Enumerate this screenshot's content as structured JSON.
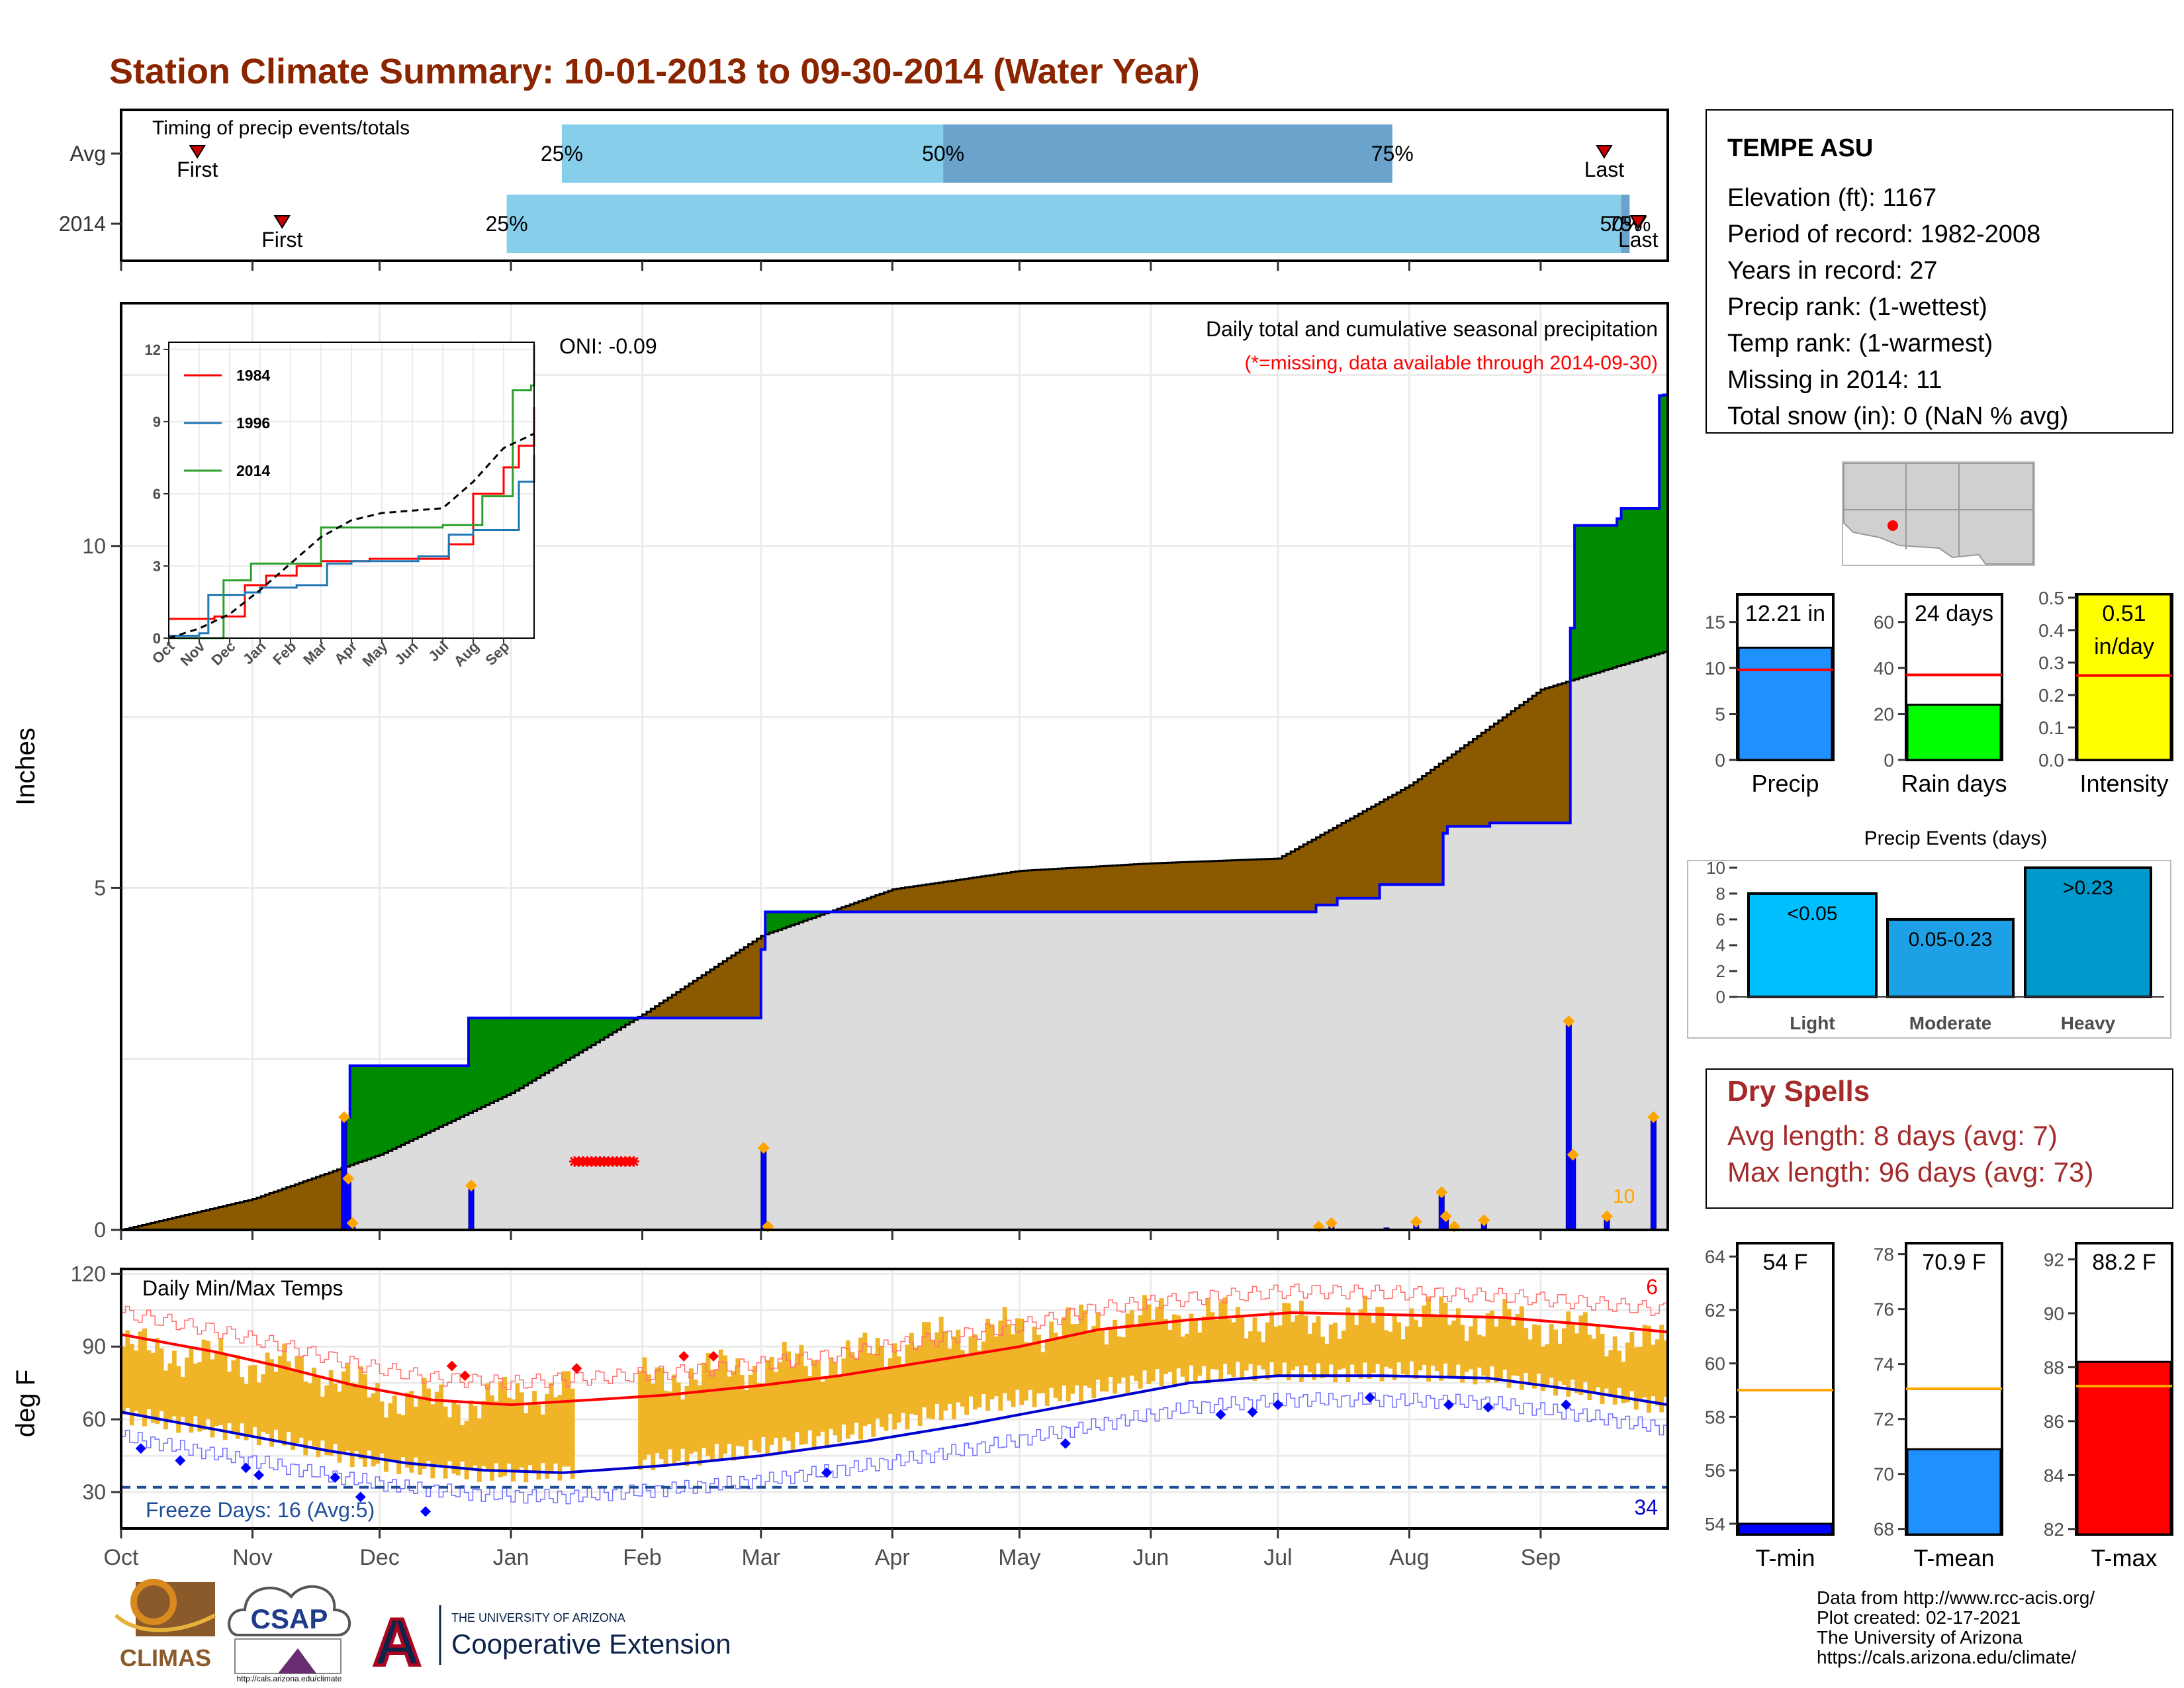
{
  "title": "Station Climate Summary: 10-01-2013 to 09-30-2014 (Water Year)",
  "colors": {
    "title": "#8b2500",
    "precip_bar_fill": "#0000ff",
    "deficit": "#8b5a00",
    "surplus": "#008b00",
    "normal_area": "#dcdcdc",
    "cum_line": "#0000ff",
    "orange_marker": "#ffa500",
    "temp_max_line": "#ff0000",
    "temp_min_line": "#0000cd",
    "temp_range_bar": "#f0b428",
    "intensity_fill": "#ffff00",
    "rain_days_fill": "#00ff00",
    "precip_fill": "#1e90ff",
    "dry_spell_text": "#a52a2a"
  },
  "timing_panel": {
    "label": "Timing of precip events/totals",
    "rows": [
      {
        "name": "Avg",
        "first_label": "First",
        "last_label": "Last",
        "p25": "25%",
        "p50": "50%",
        "p75": "75%"
      },
      {
        "name": "2014",
        "first_label": "First",
        "last_label": "Last",
        "p25": "25%",
        "p50": "50%",
        "p75": "75%"
      }
    ],
    "chart_data": {
      "type": "bar",
      "x_unit": "day of water year",
      "rows": [
        {
          "name": "Avg",
          "first": 18,
          "p25": 104,
          "p50": 194,
          "p75": 300,
          "last": 350
        },
        {
          "name": "2014",
          "first": 38,
          "p25": 91,
          "p50": 354,
          "p75": 356,
          "last": 358
        }
      ]
    }
  },
  "main_panel": {
    "ylabel": "Inches",
    "y_ticks": [
      "0",
      "5",
      "10"
    ],
    "oni_label": "ONI: -0.09",
    "subtitle_1": "Daily total and cumulative seasonal precipitation",
    "subtitle_2": "(*=missing, data available through 2014-09-30)",
    "orange_count_label": "10",
    "chart_data": {
      "type": "area",
      "x_unit": "date",
      "y_range": [
        0,
        12.2
      ],
      "normal_cumulative": [
        [
          "2013-10-01",
          0.0
        ],
        [
          "2013-11-01",
          0.45
        ],
        [
          "2013-12-01",
          1.1
        ],
        [
          "2014-01-01",
          2.0
        ],
        [
          "2014-02-01",
          3.15
        ],
        [
          "2014-03-01",
          4.3
        ],
        [
          "2014-04-01",
          4.98
        ],
        [
          "2014-05-01",
          5.25
        ],
        [
          "2014-06-01",
          5.36
        ],
        [
          "2014-07-01",
          5.43
        ],
        [
          "2014-08-01",
          6.5
        ],
        [
          "2014-09-01",
          7.9
        ],
        [
          "2014-09-30",
          8.45
        ]
      ],
      "observed_cumulative": [
        [
          "2013-10-01",
          0.0
        ],
        [
          "2013-11-22",
          0.0
        ],
        [
          "2013-11-23",
          1.65
        ],
        [
          "2013-11-24",
          2.4
        ],
        [
          "2013-12-21",
          2.4
        ],
        [
          "2013-12-22",
          3.1
        ],
        [
          "2014-02-28",
          3.1
        ],
        [
          "2014-03-01",
          4.1
        ],
        [
          "2014-03-02",
          4.65
        ],
        [
          "2014-07-01",
          4.65
        ],
        [
          "2014-07-10",
          4.75
        ],
        [
          "2014-07-15",
          4.85
        ],
        [
          "2014-07-25",
          5.05
        ],
        [
          "2014-08-08",
          5.05
        ],
        [
          "2014-08-09",
          5.8
        ],
        [
          "2014-08-10",
          5.9
        ],
        [
          "2014-08-20",
          5.95
        ],
        [
          "2014-09-07",
          5.95
        ],
        [
          "2014-09-08",
          8.8
        ],
        [
          "2014-09-09",
          10.3
        ],
        [
          "2014-09-19",
          10.4
        ],
        [
          "2014-09-20",
          10.55
        ],
        [
          "2014-09-28",
          10.55
        ],
        [
          "2014-09-29",
          12.2
        ],
        [
          "2014-09-30",
          12.21
        ]
      ],
      "daily_precip": [
        [
          "2013-11-22",
          1.65
        ],
        [
          "2013-11-23",
          0.75
        ],
        [
          "2013-11-24",
          0.1
        ],
        [
          "2013-12-22",
          0.65
        ],
        [
          "2014-03-01",
          1.2
        ],
        [
          "2014-03-02",
          0.05
        ],
        [
          "2014-07-10",
          0.05
        ],
        [
          "2014-07-13",
          0.1
        ],
        [
          "2014-07-26",
          0.03
        ],
        [
          "2014-08-02",
          0.12
        ],
        [
          "2014-08-08",
          0.55
        ],
        [
          "2014-08-09",
          0.2
        ],
        [
          "2014-08-11",
          0.05
        ],
        [
          "2014-08-18",
          0.14
        ],
        [
          "2014-09-07",
          3.05
        ],
        [
          "2014-09-08",
          1.1
        ],
        [
          "2014-09-16",
          0.2
        ],
        [
          "2014-09-27",
          1.65
        ]
      ],
      "missing_range": [
        "2014-01-16",
        "2014-01-30"
      ]
    }
  },
  "inset": {
    "x_ticks": [
      "Oct",
      "Nov",
      "Dec",
      "Jan",
      "Feb",
      "Mar",
      "Apr",
      "May",
      "Jun",
      "Jul",
      "Aug",
      "Sep"
    ],
    "y_ticks": [
      "0",
      "3",
      "6",
      "9",
      "12"
    ],
    "legend": [
      {
        "name": "1984",
        "color": "#ff0000"
      },
      {
        "name": "1996",
        "color": "#1f77b4"
      },
      {
        "name": "2014",
        "color": "#2ca02c"
      }
    ],
    "chart_data": {
      "type": "line",
      "x_unit": "month of water year (0 = Oct 1)",
      "series": [
        {
          "name": "1984",
          "points": [
            [
              0,
              0.8
            ],
            [
              1.5,
              0.9
            ],
            [
              2.5,
              2.2
            ],
            [
              3.2,
              2.6
            ],
            [
              4.2,
              3.0
            ],
            [
              5.0,
              3.2
            ],
            [
              6.6,
              3.3
            ],
            [
              8.0,
              3.3
            ],
            [
              9.2,
              3.9
            ],
            [
              10.0,
              6.0
            ],
            [
              11.0,
              7.1
            ],
            [
              11.5,
              8.0
            ],
            [
              12,
              9.6
            ]
          ]
        },
        {
          "name": "1996",
          "points": [
            [
              0,
              0.1
            ],
            [
              1.0,
              0.2
            ],
            [
              1.3,
              1.8
            ],
            [
              2.5,
              1.9
            ],
            [
              3.0,
              2.1
            ],
            [
              4.2,
              2.2
            ],
            [
              5.2,
              3.1
            ],
            [
              6.0,
              3.2
            ],
            [
              8.2,
              3.4
            ],
            [
              9.2,
              4.3
            ],
            [
              10.0,
              4.5
            ],
            [
              11.5,
              6.5
            ],
            [
              12,
              7.6
            ]
          ]
        },
        {
          "name": "2014",
          "points": [
            [
              0,
              0.0
            ],
            [
              1.7,
              0.0
            ],
            [
              1.8,
              2.4
            ],
            [
              2.7,
              3.1
            ],
            [
              4.9,
              3.1
            ],
            [
              5.0,
              4.6
            ],
            [
              9.0,
              4.7
            ],
            [
              10.3,
              5.9
            ],
            [
              11.2,
              5.9
            ],
            [
              11.3,
              10.3
            ],
            [
              11.9,
              10.5
            ],
            [
              12,
              12.2
            ]
          ]
        },
        {
          "name": "normal",
          "points": [
            [
              0,
              0.0
            ],
            [
              1,
              0.4
            ],
            [
              2,
              1.0
            ],
            [
              3,
              2.0
            ],
            [
              4,
              3.1
            ],
            [
              5,
              4.2
            ],
            [
              6,
              4.9
            ],
            [
              7,
              5.2
            ],
            [
              8,
              5.3
            ],
            [
              9,
              5.4
            ],
            [
              10,
              6.5
            ],
            [
              11,
              7.9
            ],
            [
              12,
              8.5
            ]
          ]
        }
      ]
    }
  },
  "temp_panel": {
    "title": "Daily Min/Max Temps",
    "ylabel": "deg F",
    "y_ticks": [
      "30",
      "60",
      "90",
      "120"
    ],
    "freeze_label": "Freeze Days: 16 (Avg:5)",
    "count_high": "6",
    "count_low": "34",
    "x_ticks": [
      "Oct",
      "Nov",
      "Dec",
      "Jan",
      "Feb",
      "Mar",
      "Apr",
      "May",
      "Jun",
      "Jul",
      "Aug",
      "Sep"
    ],
    "chart_data": {
      "type": "line",
      "x_unit": "month of water year (0 = Oct 1)",
      "y_range": [
        15,
        122
      ],
      "freeze_line_y": 32,
      "avg_max": [
        [
          0,
          95
        ],
        [
          0.7,
          88
        ],
        [
          1.2,
          82
        ],
        [
          1.8,
          74
        ],
        [
          2.4,
          68
        ],
        [
          3.0,
          66
        ],
        [
          3.6,
          68
        ],
        [
          4.2,
          70
        ],
        [
          5.0,
          74
        ],
        [
          5.6,
          78
        ],
        [
          6.3,
          84
        ],
        [
          7.0,
          90
        ],
        [
          7.6,
          97
        ],
        [
          8.3,
          101
        ],
        [
          9.1,
          104
        ],
        [
          10.0,
          103
        ],
        [
          10.7,
          102
        ],
        [
          11.4,
          99
        ],
        [
          12,
          96
        ]
      ],
      "avg_min": [
        [
          0,
          63
        ],
        [
          0.8,
          55
        ],
        [
          1.6,
          47
        ],
        [
          2.2,
          42
        ],
        [
          2.8,
          39
        ],
        [
          3.4,
          38
        ],
        [
          4.2,
          41
        ],
        [
          5.0,
          45
        ],
        [
          5.8,
          51
        ],
        [
          6.6,
          58
        ],
        [
          7.4,
          66
        ],
        [
          8.3,
          75
        ],
        [
          9.0,
          78
        ],
        [
          9.8,
          78
        ],
        [
          10.6,
          77
        ],
        [
          11.3,
          72
        ],
        [
          12,
          66
        ]
      ],
      "obs_max_smooth": [
        [
          0,
          90
        ],
        [
          1,
          83
        ],
        [
          1.5,
          80
        ],
        [
          2,
          70
        ],
        [
          2.6,
          66
        ],
        [
          3.1,
          70
        ],
        [
          3.6,
          74
        ],
        [
          4.1,
          76
        ],
        [
          4.6,
          80
        ],
        [
          5.0,
          82
        ],
        [
          5.6,
          85
        ],
        [
          6.1,
          92
        ],
        [
          6.7,
          96
        ],
        [
          7.3,
          98
        ],
        [
          8.1,
          103
        ],
        [
          8.8,
          101
        ],
        [
          9.4,
          100
        ],
        [
          10.0,
          103
        ],
        [
          10.6,
          101
        ],
        [
          11.1,
          98
        ],
        [
          11.6,
          93
        ],
        [
          12,
          90
        ]
      ],
      "obs_min_smooth": [
        [
          0,
          62
        ],
        [
          0.6,
          57
        ],
        [
          1.2,
          52
        ],
        [
          1.8,
          44
        ],
        [
          2.3,
          40
        ],
        [
          2.8,
          38
        ],
        [
          3.3,
          38
        ],
        [
          3.9,
          42
        ],
        [
          4.5,
          45
        ],
        [
          5.0,
          49
        ],
        [
          5.6,
          54
        ],
        [
          6.1,
          60
        ],
        [
          6.7,
          67
        ],
        [
          7.3,
          70
        ],
        [
          8.0,
          77
        ],
        [
          8.7,
          80
        ],
        [
          9.4,
          79
        ],
        [
          10.0,
          80
        ],
        [
          10.6,
          78
        ],
        [
          11.2,
          73
        ],
        [
          11.7,
          68
        ],
        [
          12,
          65
        ]
      ],
      "red_diamonds": [
        [
          2.55,
          82
        ],
        [
          2.65,
          78
        ],
        [
          3.5,
          81
        ],
        [
          4.35,
          86
        ],
        [
          4.6,
          86
        ]
      ],
      "blue_diamonds": [
        [
          0.15,
          48
        ],
        [
          0.45,
          43
        ],
        [
          0.95,
          40
        ],
        [
          1.05,
          37
        ],
        [
          1.65,
          36
        ],
        [
          1.85,
          28
        ],
        [
          2.35,
          22
        ],
        [
          5.5,
          38
        ],
        [
          7.35,
          50
        ],
        [
          8.55,
          62
        ],
        [
          8.8,
          63
        ],
        [
          9.0,
          66
        ],
        [
          9.7,
          69
        ],
        [
          10.3,
          66
        ],
        [
          10.6,
          65
        ],
        [
          11.2,
          66
        ]
      ]
    }
  },
  "station_box": {
    "name": "TEMPE ASU",
    "lines": [
      "Elevation (ft): 1167",
      "Period of record: 1982-2008",
      "Years in record: 27",
      "Precip rank:  (1-wettest)",
      "Temp rank:  (1-warmest)",
      "Missing in 2014: 11",
      "Total snow (in): 0 (NaN % avg)"
    ]
  },
  "mini_bars": {
    "precip": {
      "label": "Precip",
      "value_label": "12.21 in",
      "value": 12.21,
      "avg": 9.8,
      "ymax": 18,
      "ticks": [
        "0",
        "5",
        "10",
        "15"
      ]
    },
    "rain_days": {
      "label": "Rain days",
      "value_label": "24 days",
      "value": 24,
      "avg": 37,
      "ymax": 72,
      "ticks": [
        "0",
        "20",
        "40",
        "60"
      ]
    },
    "intensity": {
      "label": "Intensity",
      "value_label_1": "0.51",
      "value_label_2": "in/day",
      "value": 0.51,
      "avg": 0.26,
      "ymax": 0.51,
      "ticks": [
        "0.0",
        "0.1",
        "0.2",
        "0.3",
        "0.4",
        "0.5"
      ]
    }
  },
  "precip_events": {
    "title": "Precip Events (days)",
    "ticks": [
      "0",
      "2",
      "4",
      "6",
      "8",
      "10"
    ],
    "chart_data": {
      "type": "bar",
      "categories": [
        "Light",
        "Moderate",
        "Heavy"
      ],
      "bar_labels": [
        "<0.05",
        "0.05-0.23",
        ">0.23"
      ],
      "values": [
        8,
        6,
        10
      ],
      "ylim": [
        0,
        10.3
      ]
    }
  },
  "dry_spells": {
    "title": "Dry Spells",
    "avg_line": "Avg length: 8 days (avg: 7)",
    "max_line": "Max length: 96 days (avg: 73)"
  },
  "temp_bars": {
    "tmin": {
      "label": "T-min",
      "value_label": "54 F",
      "value": 54.0,
      "avg": 59.0,
      "ymin": 53.6,
      "ymax": 64.5,
      "ticks": [
        "54",
        "56",
        "58",
        "60",
        "62",
        "64"
      ]
    },
    "tmean": {
      "label": "T-mean",
      "value_label": "70.9 F",
      "value": 70.9,
      "avg": 73.1,
      "ymin": 67.8,
      "ymax": 78.4,
      "ticks": [
        "68",
        "70",
        "72",
        "74",
        "76",
        "78"
      ]
    },
    "tmax": {
      "label": "T-max",
      "value_label": "88.2 F",
      "value": 88.2,
      "avg": 87.3,
      "ymin": 81.8,
      "ymax": 92.6,
      "ticks": [
        "82",
        "84",
        "86",
        "88",
        "90",
        "92"
      ]
    }
  },
  "footer": {
    "lines": [
      "Data from http://www.rcc-acis.org/",
      "Plot created: 02-17-2021",
      "The University of Arizona",
      "https://cals.arizona.edu/climate/"
    ]
  },
  "logos": {
    "climas": "CLIMAS",
    "csap": "CSAP",
    "csap_url": "http://cals.arizona.edu/climate",
    "ua_small": "THE UNIVERSITY OF ARIZONA",
    "ua_big": "Cooperative Extension",
    "ua_letter": "A"
  }
}
